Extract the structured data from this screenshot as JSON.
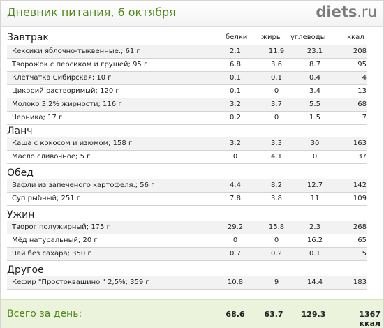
{
  "header": {
    "title": "Дневник питания, 6 октября",
    "logo_main": "diets",
    "logo_tld": ".ru"
  },
  "columns": {
    "protein": "белки",
    "fat": "жиры",
    "carbs": "углеводы",
    "kcal": "ккал"
  },
  "sections": [
    {
      "title": "Завтрак",
      "items": [
        {
          "name": "Кексики яблочно-тыквенные.; 61 г",
          "protein": "2.1",
          "fat": "11.9",
          "carbs": "23.1",
          "kcal": "208"
        },
        {
          "name": "Творожок с персиком и грушей; 95 г",
          "protein": "6.8",
          "fat": "3.6",
          "carbs": "8.7",
          "kcal": "95"
        },
        {
          "name": "Клетчатка Сибирская; 10 г",
          "protein": "0.1",
          "fat": "0.1",
          "carbs": "0.4",
          "kcal": "4"
        },
        {
          "name": "Цикорий растворимый; 120 г",
          "protein": "0.1",
          "fat": "0",
          "carbs": "3.4",
          "kcal": "13"
        },
        {
          "name": "Молоко 3,2% жирности; 116 г",
          "protein": "3.2",
          "fat": "3.7",
          "carbs": "5.5",
          "kcal": "68"
        },
        {
          "name": "Черника; 17 г",
          "protein": "0.2",
          "fat": "0",
          "carbs": "1.5",
          "kcal": "7"
        }
      ]
    },
    {
      "title": "Ланч",
      "items": [
        {
          "name": "Каша с кокосом и изюмом; 158 г",
          "protein": "3.2",
          "fat": "3.3",
          "carbs": "30",
          "kcal": "163"
        },
        {
          "name": "Масло сливочное; 5 г",
          "protein": "0",
          "fat": "4.1",
          "carbs": "0",
          "kcal": "37"
        }
      ]
    },
    {
      "title": "Обед",
      "items": [
        {
          "name": "Вафли из запеченого картофеля.; 56 г",
          "protein": "4.4",
          "fat": "8.2",
          "carbs": "12.7",
          "kcal": "142"
        },
        {
          "name": "Суп рыбный; 251 г",
          "protein": "7.8",
          "fat": "3.8",
          "carbs": "11",
          "kcal": "109"
        }
      ]
    },
    {
      "title": "Ужин",
      "items": [
        {
          "name": "Творог полужирный; 175 г",
          "protein": "29.2",
          "fat": "15.8",
          "carbs": "2.3",
          "kcal": "268"
        },
        {
          "name": "Мёд натуральный; 20 г",
          "protein": "0",
          "fat": "0",
          "carbs": "16.2",
          "kcal": "65"
        },
        {
          "name": "Чай без сахара; 350 г",
          "protein": "0.7",
          "fat": "0.2",
          "carbs": "0.1",
          "kcal": "5"
        }
      ]
    },
    {
      "title": "Другое",
      "items": [
        {
          "name": "Кефир \"Простоквашино \" 2,5%; 359 г",
          "protein": "10.8",
          "fat": "9",
          "carbs": "14.4",
          "kcal": "183"
        }
      ]
    }
  ],
  "totals": {
    "label": "Всего за день:",
    "protein": "68.6",
    "fat": "63.7",
    "carbs": "129.3",
    "kcal": "1367 ккал"
  }
}
